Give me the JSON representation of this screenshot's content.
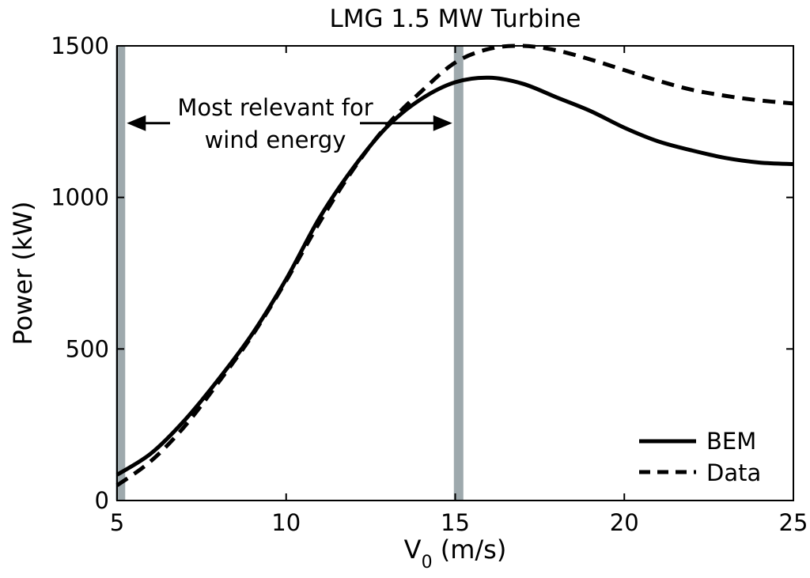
{
  "chart_data": {
    "type": "line",
    "title": "LMG 1.5 MW Turbine",
    "xlabel_main": "V",
    "xlabel_sub": "0",
    "xlabel_unit": " (m/s)",
    "ylabel": "Power (kW)",
    "xlim": [
      5,
      25
    ],
    "ylim": [
      0,
      1500
    ],
    "xticks": [
      "5",
      "10",
      "15",
      "20",
      "25"
    ],
    "yticks": [
      "0",
      "500",
      "1000",
      "1500"
    ],
    "series": [
      {
        "name": "BEM",
        "style": "solid",
        "x": [
          5,
          6,
          7,
          8,
          9,
          10,
          11,
          12,
          13,
          14,
          15,
          16,
          17,
          18,
          19,
          20,
          21,
          22,
          23,
          24,
          25
        ],
        "y": [
          85,
          155,
          265,
          400,
          550,
          730,
          935,
          1100,
          1235,
          1325,
          1380,
          1395,
          1375,
          1330,
          1285,
          1230,
          1185,
          1155,
          1130,
          1115,
          1110
        ]
      },
      {
        "name": "Data",
        "style": "dashed",
        "x": [
          5,
          6,
          7,
          8,
          9,
          10,
          11,
          12,
          13,
          14,
          15,
          16,
          17,
          18,
          19,
          20,
          21,
          22,
          23,
          24,
          25
        ],
        "y": [
          50,
          130,
          245,
          390,
          545,
          725,
          920,
          1095,
          1240,
          1350,
          1445,
          1490,
          1500,
          1485,
          1455,
          1420,
          1385,
          1355,
          1335,
          1320,
          1310
        ]
      }
    ],
    "vertical_bands": [
      {
        "x": 5.1,
        "color": "#9ea9ad"
      },
      {
        "x": 15.1,
        "color": "#9ea9ad"
      }
    ],
    "annotation": {
      "line1": "Most relevant for",
      "line2": "wind energy",
      "from_x": 5.1,
      "to_x": 15.1,
      "arrow_y": 1245
    },
    "legend_position": "bottom-right"
  }
}
